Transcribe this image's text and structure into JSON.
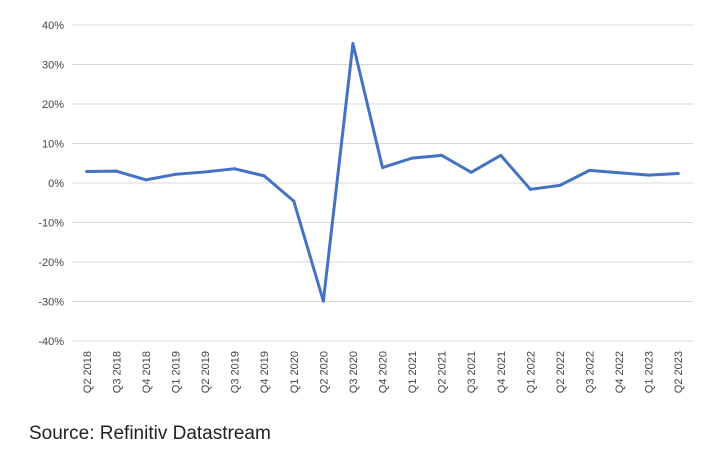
{
  "chart_data": {
    "type": "line",
    "title": "",
    "xlabel": "",
    "ylabel": "",
    "ylim": [
      -40,
      40
    ],
    "y_ticks": [
      40,
      30,
      20,
      10,
      0,
      -10,
      -20,
      -30,
      -40
    ],
    "y_tick_labels": [
      "40%",
      "30%",
      "20%",
      "10%",
      "0%",
      "-10%",
      "-20%",
      "-30%",
      "-40%"
    ],
    "grid": true,
    "legend": "none",
    "categories": [
      "Q2 2018",
      "Q3 2018",
      "Q4 2018",
      "Q1 2019",
      "Q2 2019",
      "Q3 2019",
      "Q4 2019",
      "Q1 2020",
      "Q2 2020",
      "Q3 2020",
      "Q4 2020",
      "Q1 2021",
      "Q2 2021",
      "Q3 2021",
      "Q4 2021",
      "Q1 2022",
      "Q2 2022",
      "Q3 2022",
      "Q4 2022",
      "Q1 2023",
      "Q2 2023"
    ],
    "series": [
      {
        "color": "#4472c4",
        "values": [
          2.9,
          3.0,
          0.8,
          2.2,
          2.8,
          3.6,
          1.8,
          -4.6,
          -29.9,
          35.3,
          3.9,
          6.3,
          7.0,
          2.7,
          7.0,
          -1.6,
          -0.6,
          3.2,
          2.6,
          2.0,
          2.4
        ]
      }
    ]
  },
  "source": "Source: Refinitiv Datastream"
}
